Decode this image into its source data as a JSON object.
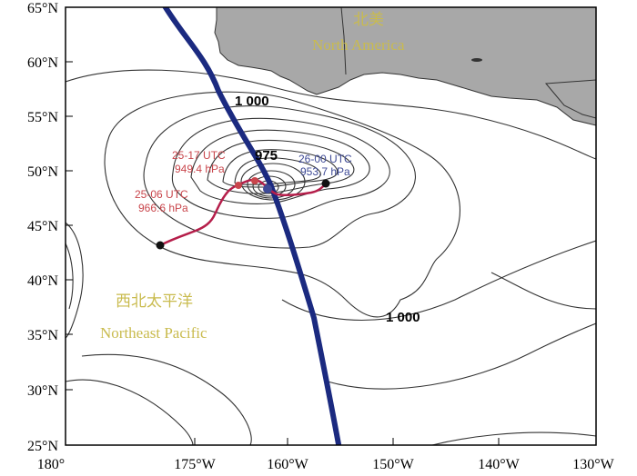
{
  "axes": {
    "y_ticks": [
      "65°N",
      "60°N",
      "55°N",
      "50°N",
      "45°N",
      "40°N",
      "35°N",
      "30°N",
      "25°N"
    ],
    "x_ticks": [
      "180°",
      "175°W",
      "160°W",
      "150°W",
      "140°W",
      "130°W"
    ]
  },
  "regions": {
    "north_america_cn": "北美",
    "north_america_en": "North America",
    "pacific_cn": "西北太平洋",
    "pacific_en": "Northeast Pacific"
  },
  "contour_labels": {
    "top": "1 000",
    "center": "975",
    "bottom": "1 000"
  },
  "annotations": {
    "a1_time": "25-17 UTC",
    "a1_pressure": "949.4 hPa",
    "a2_time": "25-06 UTC",
    "a2_pressure": "966.6 hPa",
    "a3_time": "26-00 UTC",
    "a3_pressure": "953.7 hPa"
  },
  "colors": {
    "track": "#b51e4a",
    "jet": "#1b2a80",
    "land": "#a8a8a8",
    "label_gold": "#c9bb4e",
    "ann_red": "#c9464c",
    "ann_blue": "#3e4a96"
  }
}
